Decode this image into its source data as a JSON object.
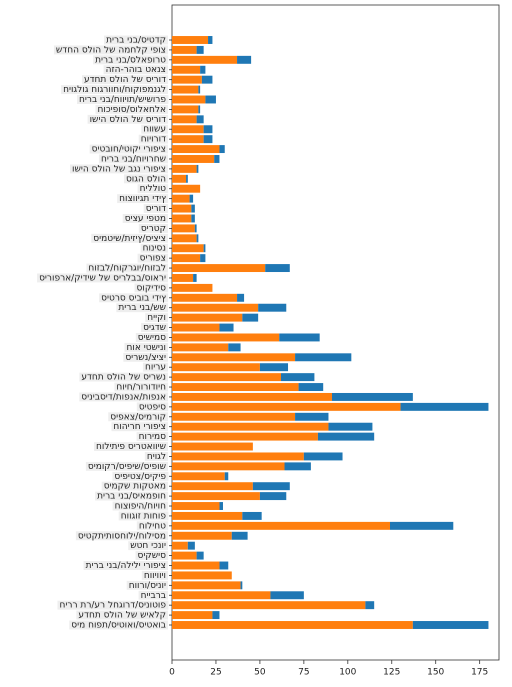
{
  "chart_data": {
    "type": "stacked-barh",
    "categories": [
      "תירב ינב/סיטדק",
      "שדחה סלוה לש המחלק יפוצ",
      "תירב ינב/סלאפורט",
      "הזה-רהוב טאנצ",
      "עדחת סלוה לש סירוד",
      "חיוגלוג חוגרווחו/חוקופמנגל",
      "חירב ינב/חוויות/שישורפ",
      "חוכיפוס/סולאחלא",
      "ושיה סלוה לש סירוד",
      "חוושע",
      "חויורוד",
      "סיטבוח/יטוקי ירופיצ",
      "חירב ינב/חויורחש",
      "ושיה סלוה לש בגנ ירופיצ",
      "סוגה סלוה",
      "חיללוט",
      "חוצוויגת ידיץ",
      "סירוד",
      "סיצע יפטמ",
      "סירטק",
      "סימטיש/תיזיץ/סיציצ",
      "חוניסנ",
      "סירופצ",
      "חוזבל/חוקרגוי/חוזבל",
      "סירופרא/קידיש לש סירלבב/סוארי",
      "סוקידיס",
      "סיטרס סיבוב ידיץ",
      "תירב ינב/שש",
      "חייקו",
      "סיגדש",
      "סישימס",
      "חוא יטשינו",
      "סירשנ/ציצי",
      "חוירע",
      "עדחת סלוה לש סירשנ",
      "חויח/רורודויח",
      "סיניבסיד/תופנא/תופנא",
      "סיטפיס",
      "סיפאצ/סימרוק",
      "חוהירח ירופיצ",
      "חורימס",
      "חוליתיפ סירטאוויש",
      "חיוגל",
      "סימוקר/סיפיש/סיפוש",
      "סיפיטצ/סיקיפ",
      "סימקש תוקטאמ",
      "תירב ינב/סיאמפוח",
      "חוצופיה/חויוח",
      "חווגוז תוחופ",
      "חוליחט",
      "סיטקתיתוסחולי/חוליסמ",
      "שטח יכנוי",
      "סיקשיס",
      "תירב ינב/הלילי ירופיצ",
      "חוויוויו",
      "חוורו/סינוי",
      "חייברב",
      "חירר תר/ער לחגורד/סינוטופ",
      "עדחת סלוה לש שיאלק",
      "סימ חופת/סיטואו/סיטאוב"
    ],
    "series": [
      {
        "color": "#ff7f0e",
        "values": [
          20.5,
          14,
          37,
          16,
          17,
          15,
          19,
          15,
          14,
          18,
          18,
          27,
          24,
          14,
          8,
          16,
          10,
          11,
          11,
          13,
          14,
          18,
          16,
          53,
          12,
          23,
          37,
          49,
          40,
          27,
          61,
          32,
          70,
          50,
          62,
          72,
          91,
          130,
          70,
          89,
          83,
          46,
          75,
          64,
          30,
          46,
          50,
          27,
          40,
          124,
          34,
          9,
          14,
          27,
          34,
          39,
          56,
          110,
          23,
          137
        ]
      },
      {
        "color": "#1f77b4",
        "values": [
          2.5,
          4,
          8,
          3,
          6,
          1,
          6,
          1,
          4,
          5,
          5,
          3,
          3,
          1,
          1,
          0,
          2,
          2,
          2,
          1,
          1,
          1,
          3,
          14,
          2,
          0,
          4,
          16,
          9,
          8,
          23,
          7,
          32,
          16,
          19,
          14,
          46,
          50,
          19,
          25,
          32,
          0,
          22,
          15,
          2,
          21,
          15,
          2,
          11,
          36,
          9,
          4,
          4,
          5,
          0,
          1,
          19,
          5,
          4,
          43
        ]
      }
    ],
    "xlim": [
      0,
      186
    ],
    "xticks": [
      0,
      25,
      50,
      75,
      100,
      125,
      150,
      175
    ]
  }
}
